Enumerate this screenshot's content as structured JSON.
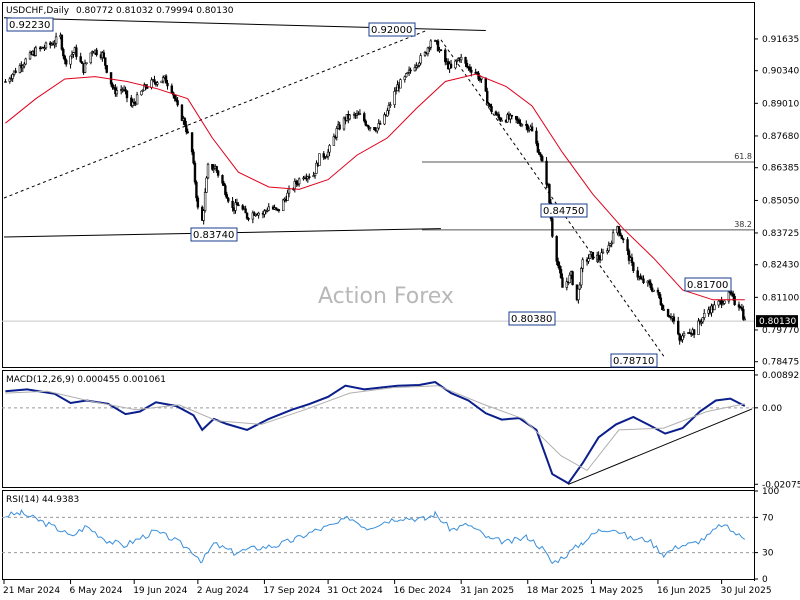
{
  "chart_data": [
    {
      "type": "candlestick",
      "title": "USDCHF,Daily",
      "ohlc_header": "0.80772 0.81032 0.79994 0.80130",
      "watermark": "Action Forex",
      "last_price": "0.80130",
      "y_ticks": [
        "0.91635",
        "0.90340",
        "0.89010",
        "0.87680",
        "0.86385",
        "0.85050",
        "0.83725",
        "0.82430",
        "0.81100",
        "0.79770",
        "0.78475"
      ],
      "x_ticks": [
        "21 Mar 2024",
        "6 May 2024",
        "19 Jun 2024",
        "2 Aug 2024",
        "17 Sep 2024",
        "31 Oct 2024",
        "16 Dec 2024",
        "31 Jan 2025",
        "18 Mar 2025",
        "1 May 2025",
        "16 Jun 2025",
        "30 Jul 2025"
      ],
      "ylim": [
        0.7826,
        0.931
      ],
      "fib_levels": [
        {
          "label": "61.8",
          "value": 0.8662
        },
        {
          "label": "38.2",
          "value": 0.8385
        }
      ],
      "annotations": [
        {
          "text": "0.92230",
          "date": "2024-04-02",
          "value": 0.9223
        },
        {
          "text": "0.92000",
          "date": "2025-01-13",
          "value": 0.92
        },
        {
          "text": "0.83740",
          "date": "2024-08-05",
          "value": 0.8374
        },
        {
          "text": "0.84750",
          "date": "2025-04-11",
          "value": 0.8475
        },
        {
          "text": "0.81700",
          "date": "2025-07-01",
          "value": 0.817
        },
        {
          "text": "0.80380",
          "date": "2025-04-21",
          "value": 0.8038
        },
        {
          "text": "0.78710",
          "date": "2025-07-01",
          "value": 0.7871
        }
      ],
      "trendlines": [
        {
          "style": "solid",
          "from": [
            "2024-03-21",
            0.925
          ],
          "to": [
            "2025-02-17",
            0.9198
          ]
        },
        {
          "style": "solid",
          "from": [
            "2024-03-21",
            0.8356
          ],
          "to": [
            "2025-01-17",
            0.839
          ]
        },
        {
          "style": "dashed",
          "from": [
            "2024-03-21",
            0.8515
          ],
          "to": [
            "2025-01-08",
            0.92
          ]
        },
        {
          "style": "dashed",
          "from": [
            "2025-01-17",
            0.916
          ],
          "to": [
            "2025-06-20",
            0.787
          ]
        }
      ],
      "ma_color": "#e0001b",
      "candle_color": "#000000",
      "closes": [
        [
          "2024-03-22",
          0.899
        ],
        [
          "2024-04-02",
          0.906
        ],
        [
          "2024-04-12",
          0.9115
        ],
        [
          "2024-04-22",
          0.914
        ],
        [
          "2024-04-29",
          0.917
        ],
        [
          "2024-05-02",
          0.907
        ],
        [
          "2024-05-09",
          0.9115
        ],
        [
          "2024-05-15",
          0.904
        ],
        [
          "2024-05-21",
          0.912
        ],
        [
          "2024-05-28",
          0.91
        ],
        [
          "2024-05-31",
          0.904
        ],
        [
          "2024-06-05",
          0.895
        ],
        [
          "2024-06-11",
          0.896
        ],
        [
          "2024-06-17",
          0.889
        ],
        [
          "2024-06-21",
          0.892
        ],
        [
          "2024-06-27",
          0.897
        ],
        [
          "2024-07-03",
          0.899
        ],
        [
          "2024-07-10",
          0.9
        ],
        [
          "2024-07-15",
          0.896
        ],
        [
          "2024-07-19",
          0.888
        ],
        [
          "2024-07-24",
          0.882
        ],
        [
          "2024-07-29",
          0.87
        ],
        [
          "2024-08-02",
          0.847
        ],
        [
          "2024-08-05",
          0.842
        ],
        [
          "2024-08-09",
          0.864
        ],
        [
          "2024-08-14",
          0.864
        ],
        [
          "2024-08-20",
          0.856
        ],
        [
          "2024-08-26",
          0.847
        ],
        [
          "2024-08-30",
          0.849
        ],
        [
          "2024-09-05",
          0.844
        ],
        [
          "2024-09-11",
          0.846
        ],
        [
          "2024-09-16",
          0.845
        ],
        [
          "2024-09-20",
          0.848
        ],
        [
          "2024-09-26",
          0.846
        ],
        [
          "2024-10-02",
          0.852
        ],
        [
          "2024-10-08",
          0.857
        ],
        [
          "2024-10-14",
          0.861
        ],
        [
          "2024-10-21",
          0.861
        ],
        [
          "2024-10-25",
          0.868
        ],
        [
          "2024-10-31",
          0.87
        ],
        [
          "2024-11-06",
          0.879
        ],
        [
          "2024-11-12",
          0.884
        ],
        [
          "2024-11-18",
          0.885
        ],
        [
          "2024-11-22",
          0.885
        ],
        [
          "2024-11-28",
          0.881
        ],
        [
          "2024-12-04",
          0.88
        ],
        [
          "2024-12-10",
          0.885
        ],
        [
          "2024-12-13",
          0.89
        ],
        [
          "2024-12-18",
          0.897
        ],
        [
          "2024-12-23",
          0.9
        ],
        [
          "2024-12-30",
          0.906
        ],
        [
          "2025-01-06",
          0.91
        ],
        [
          "2025-01-10",
          0.916
        ],
        [
          "2025-01-14",
          0.914
        ],
        [
          "2025-01-20",
          0.907
        ],
        [
          "2025-01-24",
          0.904
        ],
        [
          "2025-01-30",
          0.909
        ],
        [
          "2025-02-04",
          0.905
        ],
        [
          "2025-02-10",
          0.903
        ],
        [
          "2025-02-14",
          0.899
        ],
        [
          "2025-02-20",
          0.888
        ],
        [
          "2025-02-26",
          0.884
        ],
        [
          "2025-03-04",
          0.884
        ],
        [
          "2025-03-10",
          0.883
        ],
        [
          "2025-03-14",
          0.882
        ],
        [
          "2025-03-20",
          0.88
        ],
        [
          "2025-03-26",
          0.87
        ],
        [
          "2025-04-01",
          0.856
        ],
        [
          "2025-04-04",
          0.837
        ],
        [
          "2025-04-08",
          0.824
        ],
        [
          "2025-04-11",
          0.815
        ],
        [
          "2025-04-17",
          0.82
        ],
        [
          "2025-04-21",
          0.81
        ],
        [
          "2025-04-25",
          0.825
        ],
        [
          "2025-05-01",
          0.828
        ],
        [
          "2025-05-07",
          0.827
        ],
        [
          "2025-05-13",
          0.832
        ],
        [
          "2025-05-19",
          0.84
        ],
        [
          "2025-05-23",
          0.834
        ],
        [
          "2025-05-29",
          0.824
        ],
        [
          "2025-06-04",
          0.818
        ],
        [
          "2025-06-10",
          0.816
        ],
        [
          "2025-06-16",
          0.812
        ],
        [
          "2025-06-20",
          0.806
        ],
        [
          "2025-06-26",
          0.803
        ],
        [
          "2025-07-01",
          0.793
        ],
        [
          "2025-07-07",
          0.798
        ],
        [
          "2025-07-11",
          0.797
        ],
        [
          "2025-07-16",
          0.802
        ],
        [
          "2025-07-21",
          0.806
        ],
        [
          "2025-07-25",
          0.807
        ],
        [
          "2025-07-31",
          0.81
        ],
        [
          "2025-08-05",
          0.812
        ],
        [
          "2025-08-08",
          0.809
        ],
        [
          "2025-08-12",
          0.808
        ],
        [
          "2025-08-15",
          0.8013
        ]
      ],
      "ma": [
        [
          "2024-03-22",
          0.882
        ],
        [
          "2024-04-12",
          0.892
        ],
        [
          "2024-05-02",
          0.9
        ],
        [
          "2024-05-23",
          0.901
        ],
        [
          "2024-06-14",
          0.899
        ],
        [
          "2024-07-05",
          0.896
        ],
        [
          "2024-07-26",
          0.892
        ],
        [
          "2024-08-12",
          0.876
        ],
        [
          "2024-08-30",
          0.862
        ],
        [
          "2024-09-20",
          0.856
        ],
        [
          "2024-10-11",
          0.855
        ],
        [
          "2024-10-31",
          0.859
        ],
        [
          "2024-11-20",
          0.869
        ],
        [
          "2024-12-11",
          0.876
        ],
        [
          "2024-12-31",
          0.888
        ],
        [
          "2025-01-20",
          0.899
        ],
        [
          "2025-02-10",
          0.902
        ],
        [
          "2025-03-03",
          0.897
        ],
        [
          "2025-03-21",
          0.889
        ],
        [
          "2025-04-11",
          0.87
        ],
        [
          "2025-05-02",
          0.853
        ],
        [
          "2025-05-23",
          0.839
        ],
        [
          "2025-06-13",
          0.827
        ],
        [
          "2025-07-03",
          0.814
        ],
        [
          "2025-07-24",
          0.81
        ],
        [
          "2025-08-15",
          0.81
        ]
      ]
    },
    {
      "type": "line",
      "title": "MACD(12,26,9) 0.000455 0.001061",
      "ylim": [
        -0.0215,
        0.01
      ],
      "y_ticks": [
        "0.008923",
        "0.00",
        "-0.020759"
      ],
      "y_tick_values": [
        0.008923,
        0.0,
        -0.020759
      ],
      "last_value": "0.00",
      "series": [
        {
          "name": "MACD",
          "color": "#0a1e8c",
          "values": [
            [
              "2024-03-22",
              0.0045
            ],
            [
              "2024-04-06",
              0.005
            ],
            [
              "2024-04-25",
              0.0038
            ],
            [
              "2024-05-06",
              0.0013
            ],
            [
              "2024-05-17",
              0.002
            ],
            [
              "2024-06-01",
              0.0011
            ],
            [
              "2024-06-13",
              -0.0017
            ],
            [
              "2024-06-23",
              -0.001
            ],
            [
              "2024-07-04",
              0.0015
            ],
            [
              "2024-07-18",
              0.0005
            ],
            [
              "2024-07-30",
              -0.002
            ],
            [
              "2024-08-05",
              -0.006
            ],
            [
              "2024-08-13",
              -0.003
            ],
            [
              "2024-08-22",
              -0.0044
            ],
            [
              "2024-09-05",
              -0.006
            ],
            [
              "2024-09-20",
              -0.003
            ],
            [
              "2024-10-06",
              -0.0005
            ],
            [
              "2024-10-18",
              0.001
            ],
            [
              "2024-10-31",
              0.003
            ],
            [
              "2024-11-12",
              0.006
            ],
            [
              "2024-11-25",
              0.005
            ],
            [
              "2024-12-06",
              0.0055
            ],
            [
              "2024-12-18",
              0.006
            ],
            [
              "2025-01-02",
              0.0062
            ],
            [
              "2025-01-13",
              0.007
            ],
            [
              "2025-01-24",
              0.004
            ],
            [
              "2025-02-05",
              0.002
            ],
            [
              "2025-02-17",
              -0.0015
            ],
            [
              "2025-02-28",
              -0.0032
            ],
            [
              "2025-03-12",
              -0.0028
            ],
            [
              "2025-03-24",
              -0.006
            ],
            [
              "2025-04-04",
              -0.018
            ],
            [
              "2025-04-15",
              -0.0205
            ],
            [
              "2025-04-25",
              -0.015
            ],
            [
              "2025-05-06",
              -0.008
            ],
            [
              "2025-05-18",
              -0.0045
            ],
            [
              "2025-05-30",
              -0.0025
            ],
            [
              "2025-06-09",
              -0.0045
            ],
            [
              "2025-06-21",
              -0.007
            ],
            [
              "2025-07-03",
              -0.0055
            ],
            [
              "2025-07-15",
              -0.001
            ],
            [
              "2025-07-26",
              0.002
            ],
            [
              "2025-08-05",
              0.0025
            ],
            [
              "2025-08-15",
              0.0005
            ]
          ]
        },
        {
          "name": "Signal",
          "color": "#b0b0b0",
          "values": [
            [
              "2024-03-22",
              0.004
            ],
            [
              "2024-04-20",
              0.0045
            ],
            [
              "2024-05-20",
              0.0018
            ],
            [
              "2024-06-20",
              -0.0005
            ],
            [
              "2024-07-20",
              0.0008
            ],
            [
              "2024-08-15",
              -0.0035
            ],
            [
              "2024-09-15",
              -0.0045
            ],
            [
              "2024-10-15",
              -0.0005
            ],
            [
              "2024-11-15",
              0.004
            ],
            [
              "2024-12-15",
              0.0055
            ],
            [
              "2025-01-15",
              0.006
            ],
            [
              "2025-02-15",
              0.001
            ],
            [
              "2025-03-15",
              -0.003
            ],
            [
              "2025-04-10",
              -0.013
            ],
            [
              "2025-04-28",
              -0.017
            ],
            [
              "2025-05-20",
              -0.006
            ],
            [
              "2025-06-20",
              -0.0055
            ],
            [
              "2025-07-20",
              -0.001
            ],
            [
              "2025-08-15",
              0.0011
            ]
          ]
        }
      ],
      "trendlines": [
        {
          "style": "solid",
          "from": [
            "2025-04-15",
            -0.0208
          ],
          "to": [
            "2025-08-20",
            -0.0003
          ]
        }
      ]
    },
    {
      "type": "line",
      "title": "RSI(14) 44.9383",
      "ylim": [
        0,
        100
      ],
      "y_ticks": [
        "100",
        "70",
        "30",
        "0"
      ],
      "y_tick_values": [
        100,
        70,
        30,
        0
      ],
      "reference_lines": [
        70,
        30
      ],
      "series": [
        {
          "name": "RSI",
          "color": "#3a8fdb",
          "values": [
            [
              "2024-03-22",
              72
            ],
            [
              "2024-04-02",
              75
            ],
            [
              "2024-04-15",
              66
            ],
            [
              "2024-04-30",
              55
            ],
            [
              "2024-05-06",
              48
            ],
            [
              "2024-05-17",
              60
            ],
            [
              "2024-05-31",
              44
            ],
            [
              "2024-06-12",
              38
            ],
            [
              "2024-06-21",
              45
            ],
            [
              "2024-07-03",
              54
            ],
            [
              "2024-07-15",
              46
            ],
            [
              "2024-07-29",
              32
            ],
            [
              "2024-08-05",
              20
            ],
            [
              "2024-08-13",
              40
            ],
            [
              "2024-08-27",
              30
            ],
            [
              "2024-09-10",
              35
            ],
            [
              "2024-09-25",
              38
            ],
            [
              "2024-10-08",
              45
            ],
            [
              "2024-10-22",
              55
            ],
            [
              "2024-11-05",
              62
            ],
            [
              "2024-11-15",
              70
            ],
            [
              "2024-11-27",
              58
            ],
            [
              "2024-12-10",
              66
            ],
            [
              "2024-12-20",
              70
            ],
            [
              "2025-01-06",
              68
            ],
            [
              "2025-01-13",
              74
            ],
            [
              "2025-01-24",
              56
            ],
            [
              "2025-02-05",
              62
            ],
            [
              "2025-02-20",
              45
            ],
            [
              "2025-03-05",
              42
            ],
            [
              "2025-03-18",
              48
            ],
            [
              "2025-03-28",
              35
            ],
            [
              "2025-04-04",
              18
            ],
            [
              "2025-04-14",
              28
            ],
            [
              "2025-04-25",
              42
            ],
            [
              "2025-05-06",
              55
            ],
            [
              "2025-05-16",
              58
            ],
            [
              "2025-05-28",
              46
            ],
            [
              "2025-06-09",
              45
            ],
            [
              "2025-06-20",
              28
            ],
            [
              "2025-07-01",
              38
            ],
            [
              "2025-07-10",
              40
            ],
            [
              "2025-07-20",
              48
            ],
            [
              "2025-07-30",
              62
            ],
            [
              "2025-08-05",
              56
            ],
            [
              "2025-08-15",
              45
            ]
          ]
        }
      ]
    }
  ]
}
